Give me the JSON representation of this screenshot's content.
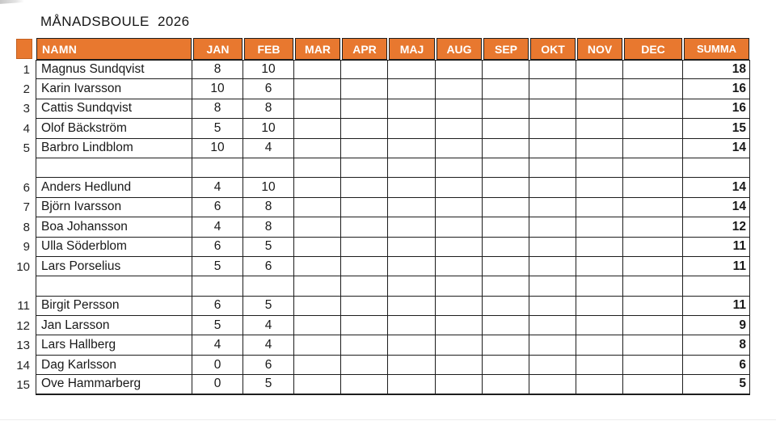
{
  "title": "MÅNADSBOULE  2026",
  "colors": {
    "header_bg": "#e8782f",
    "header_text": "#ffffff",
    "grid_border": "#1d1d1d"
  },
  "table": {
    "columns": [
      "NAMN",
      "JAN",
      "FEB",
      "MAR",
      "APR",
      "MAJ",
      "AUG",
      "SEP",
      "OKT",
      "NOV",
      "DEC",
      "SUMMA"
    ],
    "rows": [
      {
        "rank": "1",
        "name": "Magnus Sundqvist",
        "months": [
          "8",
          "10",
          "",
          "",
          "",
          "",
          "",
          "",
          "",
          ""
        ],
        "summa": "18"
      },
      {
        "rank": "2",
        "name": "Karin Ivarsson",
        "months": [
          "10",
          "6",
          "",
          "",
          "",
          "",
          "",
          "",
          "",
          ""
        ],
        "summa": "16"
      },
      {
        "rank": "3",
        "name": "Cattis Sundqvist",
        "months": [
          "8",
          "8",
          "",
          "",
          "",
          "",
          "",
          "",
          "",
          ""
        ],
        "summa": "16"
      },
      {
        "rank": "4",
        "name": "Olof Bäckström",
        "months": [
          "5",
          "10",
          "",
          "",
          "",
          "",
          "",
          "",
          "",
          ""
        ],
        "summa": "15"
      },
      {
        "rank": "5",
        "name": "Barbro Lindblom",
        "months": [
          "10",
          "4",
          "",
          "",
          "",
          "",
          "",
          "",
          "",
          ""
        ],
        "summa": "14"
      },
      {
        "rank": "",
        "name": "",
        "months": [
          "",
          "",
          "",
          "",
          "",
          "",
          "",
          "",
          "",
          ""
        ],
        "summa": ""
      },
      {
        "rank": "6",
        "name": "Anders Hedlund",
        "months": [
          "4",
          "10",
          "",
          "",
          "",
          "",
          "",
          "",
          "",
          ""
        ],
        "summa": "14"
      },
      {
        "rank": "7",
        "name": "Björn Ivarsson",
        "months": [
          "6",
          "8",
          "",
          "",
          "",
          "",
          "",
          "",
          "",
          ""
        ],
        "summa": "14"
      },
      {
        "rank": "8",
        "name": "Boa Johansson",
        "months": [
          "4",
          "8",
          "",
          "",
          "",
          "",
          "",
          "",
          "",
          ""
        ],
        "summa": "12"
      },
      {
        "rank": "9",
        "name": "Ulla Söderblom",
        "months": [
          "6",
          "5",
          "",
          "",
          "",
          "",
          "",
          "",
          "",
          ""
        ],
        "summa": "11"
      },
      {
        "rank": "10",
        "name": "Lars Porselius",
        "months": [
          "5",
          "6",
          "",
          "",
          "",
          "",
          "",
          "",
          "",
          ""
        ],
        "summa": "11"
      },
      {
        "rank": "",
        "name": "",
        "months": [
          "",
          "",
          "",
          "",
          "",
          "",
          "",
          "",
          "",
          ""
        ],
        "summa": ""
      },
      {
        "rank": "11",
        "name": "Birgit Persson",
        "months": [
          "6",
          "5",
          "",
          "",
          "",
          "",
          "",
          "",
          "",
          ""
        ],
        "summa": "11"
      },
      {
        "rank": "12",
        "name": "Jan Larsson",
        "months": [
          "5",
          "4",
          "",
          "",
          "",
          "",
          "",
          "",
          "",
          ""
        ],
        "summa": "9"
      },
      {
        "rank": "13",
        "name": "Lars Hallberg",
        "months": [
          "4",
          "4",
          "",
          "",
          "",
          "",
          "",
          "",
          "",
          ""
        ],
        "summa": "8"
      },
      {
        "rank": "14",
        "name": "Dag Karlsson",
        "months": [
          "0",
          "6",
          "",
          "",
          "",
          "",
          "",
          "",
          "",
          ""
        ],
        "summa": "6"
      },
      {
        "rank": "15",
        "name": "Ove Hammarberg",
        "months": [
          "0",
          "5",
          "",
          "",
          "",
          "",
          "",
          "",
          "",
          ""
        ],
        "summa": "5"
      }
    ]
  }
}
